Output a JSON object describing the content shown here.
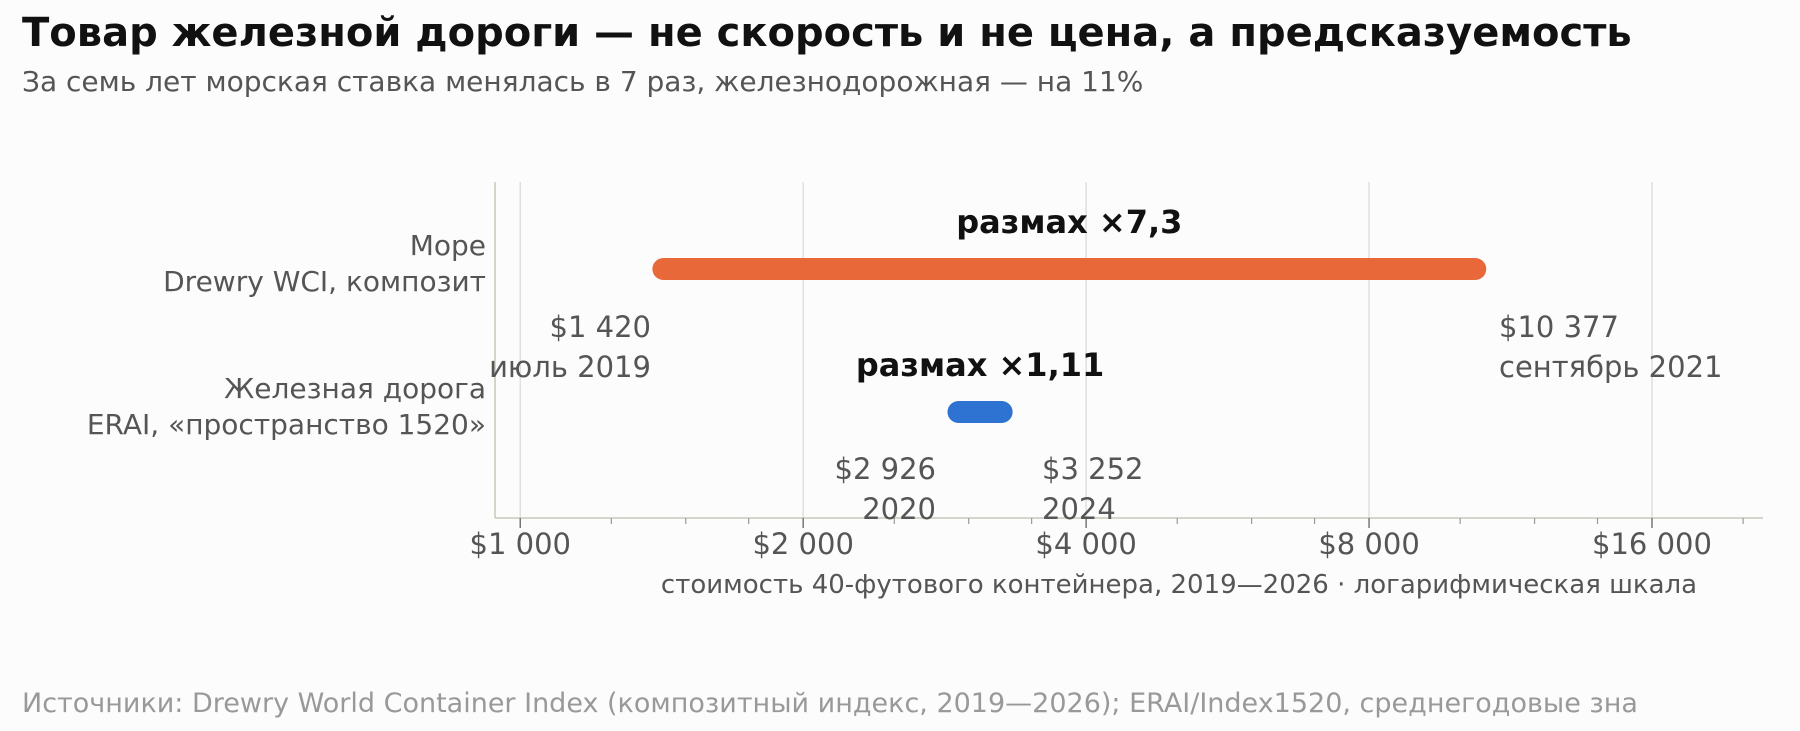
{
  "chart_data": {
    "type": "range",
    "title": "Товар железной дороги — не скорость и не цена, а предсказуемость",
    "subtitle": "За семь лет морская ставка менялась в 7 раз, железнодорожная — на 11%",
    "xlabel": "стоимость 40-футового контейнера, 2019—2026 · логарифмическая шкала",
    "x_scale": "log2",
    "xlim": [
      940,
      21000
    ],
    "x_ticks": [
      1000,
      2000,
      4000,
      8000,
      16000
    ],
    "x_tick_labels": [
      "$1 000",
      "$2 000",
      "$4 000",
      "$8 000",
      "$16 000"
    ],
    "grid": true,
    "series": [
      {
        "name": "Море",
        "sublabel": "Drewry WCI, композит",
        "color": "#e8683a",
        "low": 1420,
        "high": 10377,
        "low_value_label": "$1 420",
        "low_date_label": "июль 2019",
        "high_value_label": "$10 377",
        "high_date_label": "сентябрь 2021",
        "range_label": "размах ×7,3"
      },
      {
        "name": "Железная дорога",
        "sublabel": "ERAI, «пространство 1520»",
        "color": "#2e72d2",
        "low": 2926,
        "high": 3252,
        "low_value_label": "$2 926",
        "low_date_label": "2020",
        "high_value_label": "$3 252",
        "high_date_label": "2024",
        "range_label": "размах ×1,11"
      }
    ],
    "source": "Источники: Drewry World Container Index (композитный индекс, 2019—2026); ERAI/Index1520, среднегодовые зна"
  }
}
